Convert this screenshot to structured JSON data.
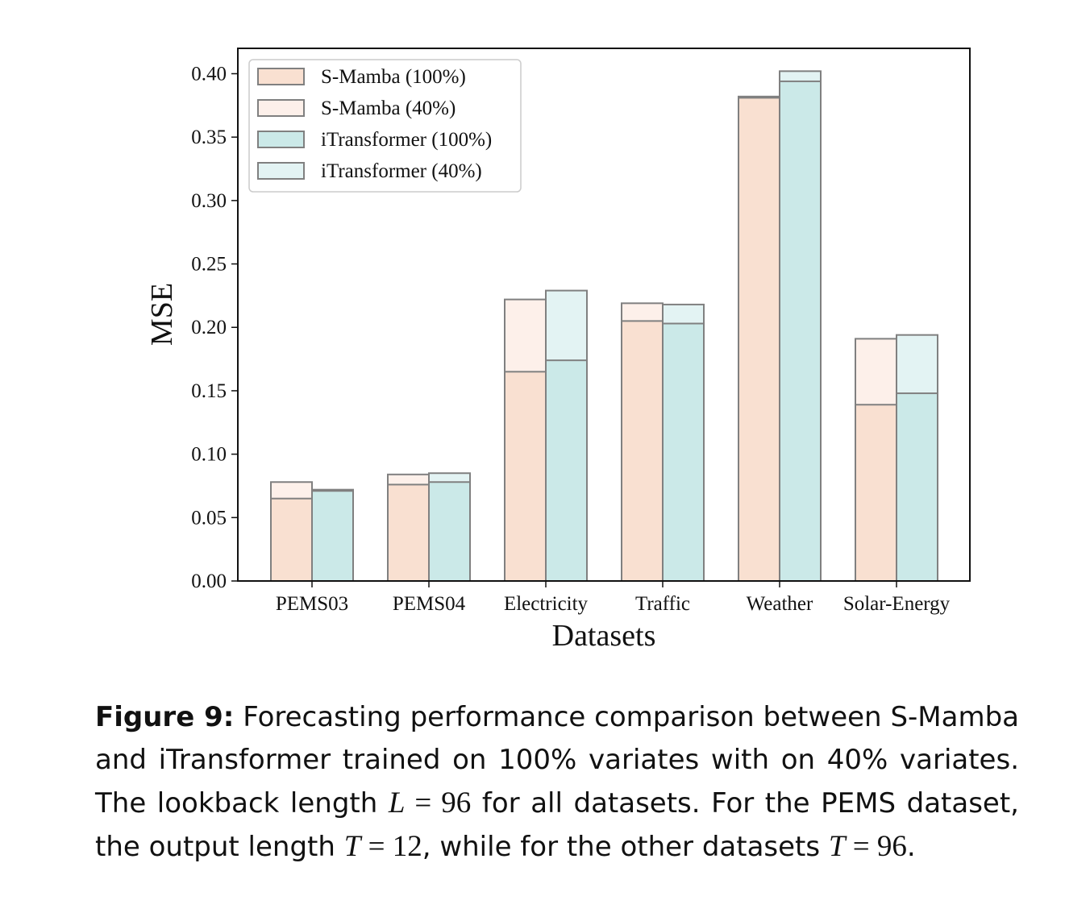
{
  "chart_data": {
    "type": "bar",
    "stacked_overlay": true,
    "xlabel": "Datasets",
    "ylabel": "MSE",
    "ylim": [
      0,
      0.42
    ],
    "yticks": [
      "0.00",
      "0.05",
      "0.10",
      "0.15",
      "0.20",
      "0.25",
      "0.30",
      "0.35",
      "0.40"
    ],
    "categories": [
      "PEMS03",
      "PEMS04",
      "Electricity",
      "Traffic",
      "Weather",
      "Solar-Energy"
    ],
    "legend_position": "top-left",
    "series": [
      {
        "name": "S-Mamba (100%)",
        "color": "#f9e0d1",
        "values": [
          0.065,
          0.076,
          0.165,
          0.205,
          0.381,
          0.139
        ]
      },
      {
        "name": "S-Mamba (40%)",
        "color": "#fdf0ea",
        "values": [
          0.078,
          0.084,
          0.222,
          0.219,
          0.382,
          0.191
        ]
      },
      {
        "name": "iTransformer (100%)",
        "color": "#cbe9e8",
        "values": [
          0.071,
          0.078,
          0.174,
          0.203,
          0.394,
          0.148
        ]
      },
      {
        "name": "iTransformer (40%)",
        "color": "#e3f3f3",
        "values": [
          0.072,
          0.085,
          0.229,
          0.218,
          0.402,
          0.194
        ]
      }
    ]
  },
  "caption": {
    "label": "Figure 9:",
    "t1": " Forecasting performance comparison between S-Mamba and iTransformer trained on 100% variates with on 40% variates. The lookback length ",
    "m1": "L",
    "m1eq": " = 96",
    "t2": " for all datasets. For the PEMS dataset, the output length ",
    "m2": "T",
    "m2eq": " = 12",
    "t3": ", while for the other datasets ",
    "m3": "T",
    "m3eq": " = 96",
    "t4": "."
  }
}
